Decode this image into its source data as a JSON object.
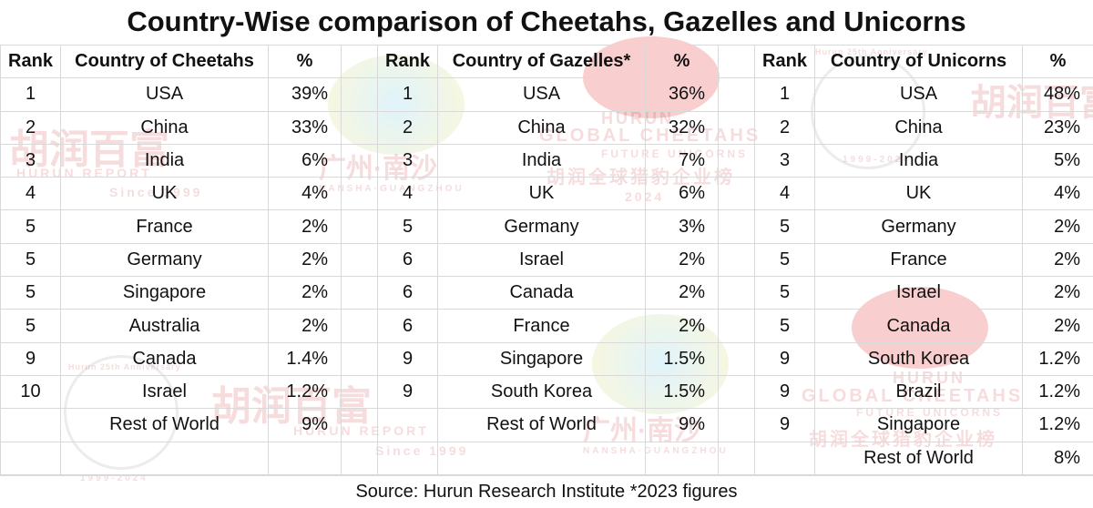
{
  "title": "Country-Wise comparison of Cheetahs, Gazelles and Unicorns",
  "source": "Source: Hurun Research Institute *2023 figures",
  "colors": {
    "gridline": "#d9d9d9",
    "watermark": "#c82828"
  },
  "chart_data": {
    "type": "table",
    "tables": [
      {
        "headers": [
          "Rank",
          "Country of Cheetahs",
          "%"
        ],
        "rows": [
          [
            "1",
            "USA",
            "39%"
          ],
          [
            "2",
            "China",
            "33%"
          ],
          [
            "3",
            "India",
            "6%"
          ],
          [
            "4",
            "UK",
            "4%"
          ],
          [
            "5",
            "France",
            "2%"
          ],
          [
            "5",
            "Germany",
            "2%"
          ],
          [
            "5",
            "Singapore",
            "2%"
          ],
          [
            "5",
            "Australia",
            "2%"
          ],
          [
            "9",
            "Canada",
            "1.4%"
          ],
          [
            "10",
            "Israel",
            "1.2%"
          ],
          [
            "",
            "Rest of World",
            "9%"
          ],
          [
            "",
            "",
            ""
          ]
        ]
      },
      {
        "headers": [
          "Rank",
          "Country of Gazelles*",
          "%"
        ],
        "rows": [
          [
            "1",
            "USA",
            "36%"
          ],
          [
            "2",
            "China",
            "32%"
          ],
          [
            "3",
            "India",
            "7%"
          ],
          [
            "4",
            "UK",
            "6%"
          ],
          [
            "5",
            "Germany",
            "3%"
          ],
          [
            "6",
            "Israel",
            "2%"
          ],
          [
            "6",
            "Canada",
            "2%"
          ],
          [
            "6",
            "France",
            "2%"
          ],
          [
            "9",
            "Singapore",
            "1.5%"
          ],
          [
            "9",
            "South Korea",
            "1.5%"
          ],
          [
            "",
            "Rest of World",
            "9%"
          ],
          [
            "",
            "",
            ""
          ]
        ]
      },
      {
        "headers": [
          "Rank",
          "Country of Unicorns",
          "%"
        ],
        "rows": [
          [
            "1",
            "USA",
            "48%"
          ],
          [
            "2",
            "China",
            "23%"
          ],
          [
            "3",
            "India",
            "5%"
          ],
          [
            "4",
            "UK",
            "4%"
          ],
          [
            "5",
            "Germany",
            "2%"
          ],
          [
            "5",
            "France",
            "2%"
          ],
          [
            "5",
            "Israel",
            "2%"
          ],
          [
            "5",
            "Canada",
            "2%"
          ],
          [
            "9",
            "South Korea",
            "1.2%"
          ],
          [
            "9",
            "Brazil",
            "1.2%"
          ],
          [
            "9",
            "Singapore",
            "1.2%"
          ],
          [
            "",
            "Rest of World",
            "8%"
          ]
        ]
      }
    ]
  },
  "watermarks": {
    "brand_cn": "胡润百富",
    "brand_en": "HURUN REPORT",
    "since": "Since 1999",
    "location_cn": "广州·南沙",
    "location_en": "NANSHA·GUANGZHOU",
    "hurun": "HURUN",
    "global_cheetahs": "GLOBAL CHEETAHS",
    "future_unicorns": "FUTURE UNICORNS",
    "list_cn": "胡润全球猎豹企业榜",
    "year": "2024",
    "anniversary": "Hurun 25th Anniversary",
    "years_span": "1999-2024"
  }
}
